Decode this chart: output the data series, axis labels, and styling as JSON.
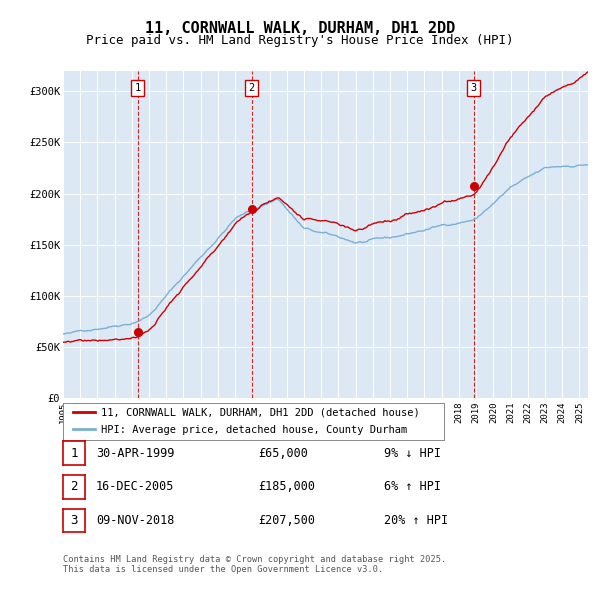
{
  "title": "11, CORNWALL WALK, DURHAM, DH1 2DD",
  "subtitle": "Price paid vs. HM Land Registry's House Price Index (HPI)",
  "title_fontsize": 11,
  "subtitle_fontsize": 9,
  "bg_color": "#dce9f5",
  "sale_markers": [
    {
      "label": "1",
      "year": 1999.33,
      "value": 65000
    },
    {
      "label": "2",
      "year": 2005.96,
      "value": 185000
    },
    {
      "label": "3",
      "year": 2018.85,
      "value": 207500
    }
  ],
  "vline_dates": [
    1999.33,
    2005.96,
    2018.85
  ],
  "legend_entries": [
    {
      "label": "11, CORNWALL WALK, DURHAM, DH1 2DD (detached house)",
      "color": "#cc0000"
    },
    {
      "label": "HPI: Average price, detached house, County Durham",
      "color": "#7ab0d4"
    }
  ],
  "table_rows": [
    {
      "num": "1",
      "date": "30-APR-1999",
      "price": "£65,000",
      "hpi": "9% ↓ HPI"
    },
    {
      "num": "2",
      "date": "16-DEC-2005",
      "price": "£185,000",
      "hpi": "6% ↑ HPI"
    },
    {
      "num": "3",
      "date": "09-NOV-2018",
      "price": "£207,500",
      "hpi": "20% ↑ HPI"
    }
  ],
  "footer": "Contains HM Land Registry data © Crown copyright and database right 2025.\nThis data is licensed under the Open Government Licence v3.0.",
  "ylim": [
    0,
    320000
  ],
  "yticks": [
    0,
    50000,
    100000,
    150000,
    200000,
    250000,
    300000
  ],
  "ytick_labels": [
    "£0",
    "£50K",
    "£100K",
    "£150K",
    "£200K",
    "£250K",
    "£300K"
  ],
  "xlim_start": 1995.0,
  "xlim_end": 2025.5,
  "xticks": [
    1995,
    1996,
    1997,
    1998,
    1999,
    2000,
    2001,
    2002,
    2003,
    2004,
    2005,
    2006,
    2007,
    2008,
    2009,
    2010,
    2011,
    2012,
    2013,
    2014,
    2015,
    2016,
    2017,
    2018,
    2019,
    2020,
    2021,
    2022,
    2023,
    2024,
    2025
  ]
}
